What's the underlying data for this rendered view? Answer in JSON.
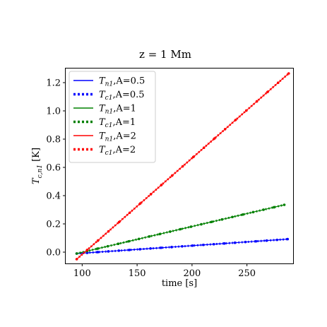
{
  "chart_data": {
    "type": "line",
    "title": "z = 1 Mm",
    "xlabel": "time [s]",
    "ylabel": "T_{c,n1} [K]",
    "xlim": [
      85,
      292
    ],
    "ylim": [
      -0.08,
      1.3
    ],
    "xticks": [
      100,
      150,
      200,
      250
    ],
    "yticks": [
      0.0,
      0.2,
      0.4,
      0.6,
      0.8,
      1.0,
      1.2
    ],
    "xtick_labels": [
      "100",
      "150",
      "200",
      "250"
    ],
    "ytick_labels": [
      "0.0",
      "0.2",
      "0.4",
      "0.6",
      "0.8",
      "1.0",
      "1.2"
    ],
    "grid": false,
    "legend_position": "top-left",
    "series": [
      {
        "name": "T_n1,A=0.5",
        "label_main": "T",
        "label_sub": "n1",
        "label_rest": ",A=0.5",
        "color": "#0000ff",
        "style": "solid",
        "x": [
          95,
          287
        ],
        "y": [
          -0.01,
          0.092
        ]
      },
      {
        "name": "T_c1,A=0.5",
        "label_main": "T",
        "label_sub": "c1",
        "label_rest": ",A=0.5",
        "color": "#0000ff",
        "style": "dotted",
        "x": [
          95,
          287
        ],
        "y": [
          -0.01,
          0.092
        ]
      },
      {
        "name": "T_n1,A=1",
        "label_main": "T",
        "label_sub": "n1",
        "label_rest": ",A=1",
        "color": "#008000",
        "style": "solid",
        "x": [
          95,
          284
        ],
        "y": [
          -0.01,
          0.335
        ]
      },
      {
        "name": "T_c1,A=1",
        "label_main": "T",
        "label_sub": "c1",
        "label_rest": ",A=1",
        "color": "#008000",
        "style": "dotted",
        "x": [
          95,
          284
        ],
        "y": [
          -0.01,
          0.335
        ]
      },
      {
        "name": "T_n1,A=2",
        "label_main": "T",
        "label_sub": "n1",
        "label_rest": ",A=2",
        "color": "#ff0000",
        "style": "solid",
        "x": [
          95,
          288
        ],
        "y": [
          -0.05,
          1.265
        ]
      },
      {
        "name": "T_c1,A=2",
        "label_main": "T",
        "label_sub": "c1",
        "label_rest": ",A=2",
        "color": "#ff0000",
        "style": "dotted",
        "x": [
          95,
          288
        ],
        "y": [
          -0.05,
          1.265
        ]
      }
    ]
  }
}
